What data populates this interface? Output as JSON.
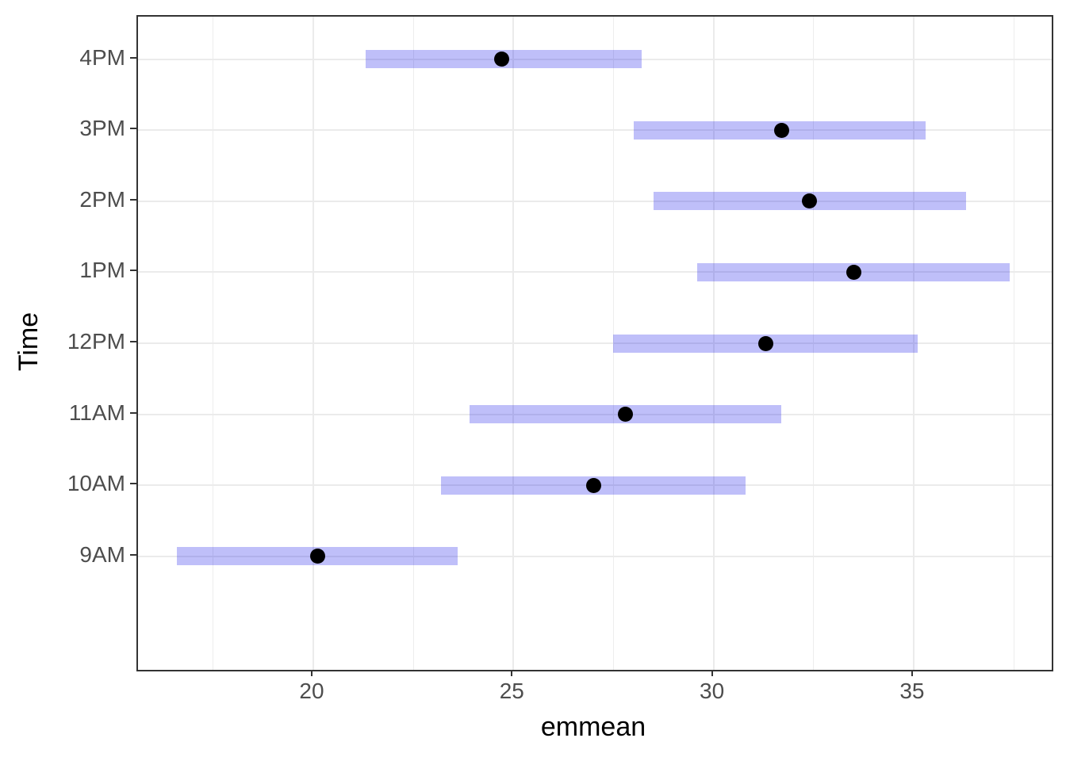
{
  "chart_data": {
    "type": "pointrange",
    "title": "",
    "xlabel": "emmean",
    "ylabel": "Time",
    "categories": [
      "4PM",
      "3PM",
      "2PM",
      "1PM",
      "12PM",
      "11AM",
      "10AM",
      "9AM"
    ],
    "series": [
      {
        "name": "emmean",
        "values": [
          24.7,
          31.7,
          32.4,
          33.5,
          31.3,
          27.8,
          27.0,
          20.1
        ]
      },
      {
        "name": "lower.CL",
        "values": [
          21.3,
          28.0,
          28.5,
          29.6,
          27.5,
          23.9,
          23.2,
          16.6
        ]
      },
      {
        "name": "upper.CL",
        "values": [
          28.2,
          35.3,
          36.3,
          37.4,
          35.1,
          31.7,
          30.8,
          23.6
        ]
      }
    ],
    "x_major_ticks": [
      20,
      25,
      30,
      35
    ],
    "x_major_tick_labels": [
      "20",
      "25",
      "30",
      "35"
    ],
    "x_minor_ticks": [
      17.5,
      22.5,
      27.5,
      32.5,
      37.5
    ],
    "xlim": [
      15.62,
      38.45
    ],
    "grid": true,
    "legend": false,
    "colors": {
      "interval_fill": "#0000E6",
      "interval_alpha": 0.25,
      "point": "#000000",
      "grid_major": "#EBEBEB",
      "grid_minor": "#EDEDED",
      "panel_border": "#333333",
      "tick_label": "#4D4D4D",
      "axis_title": "#000000",
      "background": "#FFFFFF"
    }
  }
}
